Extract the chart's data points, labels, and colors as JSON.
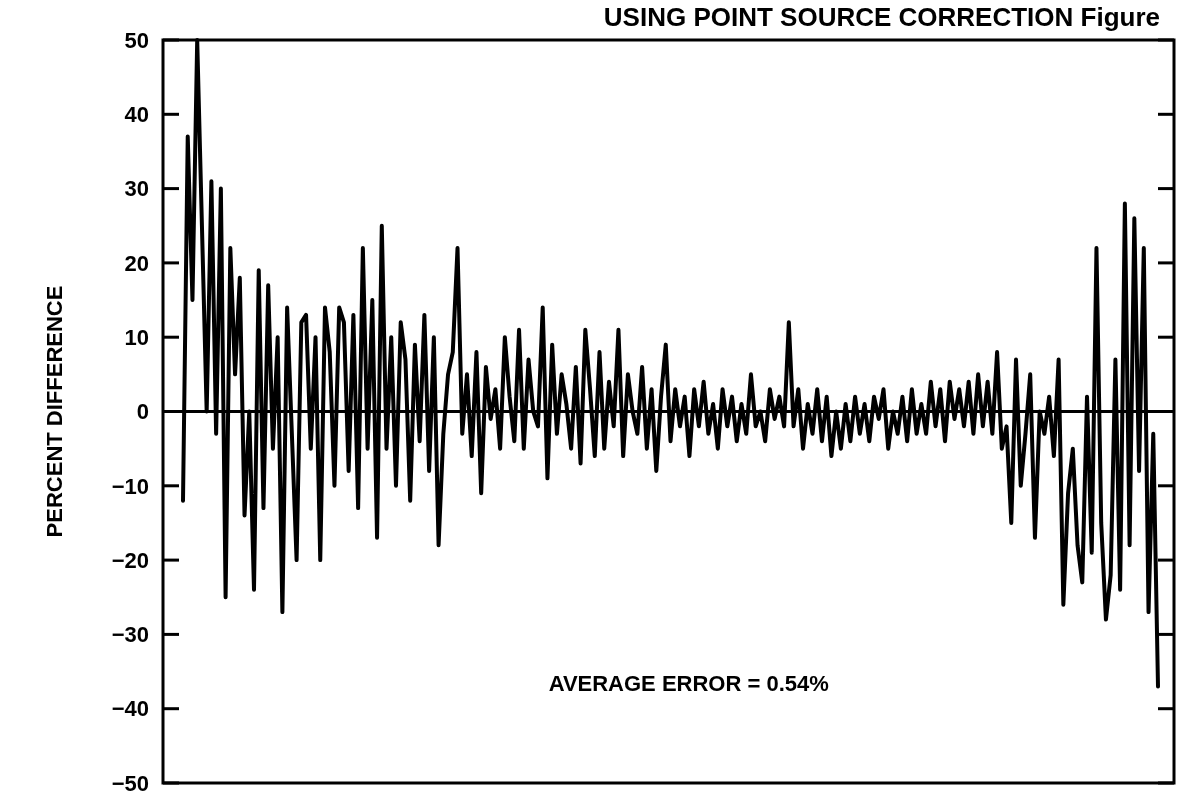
{
  "chart_data": {
    "type": "line",
    "title": "USING POINT SOURCE CORRECTION     Figure",
    "ylabel": "PERCENT DIFFERENCE",
    "annotations": [
      "AVERAGE ERROR = 0.54%"
    ],
    "categories": [
      null,
      null,
      null,
      null,
      null,
      null,
      null,
      null,
      null,
      null,
      null,
      null,
      null,
      null,
      null,
      null,
      null,
      null,
      null,
      null,
      null,
      null,
      null,
      null,
      null,
      null,
      null,
      null,
      null,
      null,
      null,
      null,
      null,
      null,
      null,
      null,
      null,
      null,
      null,
      null,
      null,
      null,
      null,
      null,
      null,
      null,
      null,
      null,
      null,
      null,
      null,
      null,
      null,
      null,
      null,
      null,
      null,
      null,
      null,
      null,
      null,
      null,
      null,
      null,
      null,
      null,
      null,
      null,
      null,
      null,
      null,
      null,
      null,
      null,
      null,
      null,
      null,
      null,
      null,
      null,
      null,
      null,
      null,
      null,
      null,
      null,
      null,
      null,
      null,
      null,
      null,
      null,
      null,
      null,
      null,
      null,
      null,
      null,
      null,
      null,
      null,
      null,
      null,
      null,
      null,
      null,
      null,
      null,
      null,
      null,
      null,
      null,
      null,
      null,
      null,
      null,
      null,
      null,
      null,
      null,
      null,
      null,
      null,
      null,
      null,
      null,
      null,
      null,
      null,
      null,
      null,
      null,
      null,
      null,
      null,
      null,
      null,
      null,
      null,
      null,
      null,
      null,
      null,
      null,
      null,
      null,
      null,
      null,
      null,
      null,
      null,
      null,
      null,
      null,
      null,
      null,
      null,
      null,
      null,
      null,
      null,
      null,
      null,
      null,
      null,
      null,
      null,
      null,
      null,
      null,
      null,
      null,
      null,
      null,
      null,
      null,
      null,
      null,
      null,
      null,
      null,
      null,
      null,
      null,
      null,
      null,
      null,
      null,
      null,
      null,
      null,
      null,
      null,
      null,
      null,
      null,
      null,
      null,
      null,
      null,
      null,
      null,
      null,
      null,
      null,
      null,
      null
    ],
    "series": [
      {
        "color": "#000000",
        "values": [
          -12,
          37,
          15,
          50,
          25,
          0,
          31,
          -3,
          30,
          -25,
          22,
          5,
          18,
          -14,
          0,
          -24,
          19,
          -13,
          17,
          -5,
          10,
          -27,
          14,
          -3,
          -20,
          12,
          13,
          -5,
          10,
          -20,
          14,
          8,
          -10,
          14,
          12,
          -8,
          13,
          -13,
          22,
          -5,
          15,
          -17,
          25,
          -5,
          10,
          -10,
          12,
          7,
          -12,
          9,
          -4,
          13,
          -8,
          10,
          -18,
          -3,
          5,
          8,
          22,
          -3,
          5,
          -6,
          8,
          -11,
          6,
          -1,
          3,
          -5,
          10,
          2,
          -4,
          11,
          -5,
          7,
          0,
          -2,
          14,
          -9,
          9,
          -3,
          5,
          1,
          -5,
          6,
          -7,
          11,
          3,
          -6,
          8,
          -5,
          4,
          -2,
          11,
          -6,
          5,
          0,
          -3,
          6,
          -5,
          3,
          -8,
          2,
          9,
          -4,
          3,
          -2,
          2,
          -6,
          3,
          -2,
          4,
          -3,
          1,
          -5,
          3,
          -2,
          2,
          -4,
          1,
          -3,
          5,
          -2,
          0,
          -4,
          3,
          -1,
          2,
          -2,
          12,
          -2,
          3,
          -5,
          1,
          -3,
          3,
          -4,
          2,
          -6,
          0,
          -5,
          1,
          -4,
          2,
          -3,
          1,
          -4,
          2,
          -1,
          3,
          -5,
          0,
          -3,
          2,
          -4,
          3,
          -3,
          1,
          -3,
          4,
          -2,
          3,
          -4,
          4,
          -1,
          3,
          -2,
          4,
          -3,
          5,
          -2,
          4,
          -3,
          8,
          -5,
          -2,
          -15,
          7,
          -10,
          -3,
          5,
          -17,
          0,
          -3,
          2,
          -6,
          7,
          -26,
          -11,
          -5,
          -18,
          -23,
          2,
          -19,
          22,
          -15,
          -28,
          -22,
          7,
          -24,
          28,
          -18,
          26,
          -8,
          22,
          -27,
          -3,
          -37
        ]
      }
    ],
    "ylim": [
      -50,
      50
    ],
    "yticks": [
      -50,
      -40,
      -30,
      -20,
      -10,
      0,
      10,
      20,
      30,
      40,
      50
    ],
    "ref_lines": [
      {
        "axis": "y",
        "value": 0,
        "color": "#000000"
      }
    ],
    "grid": false
  }
}
